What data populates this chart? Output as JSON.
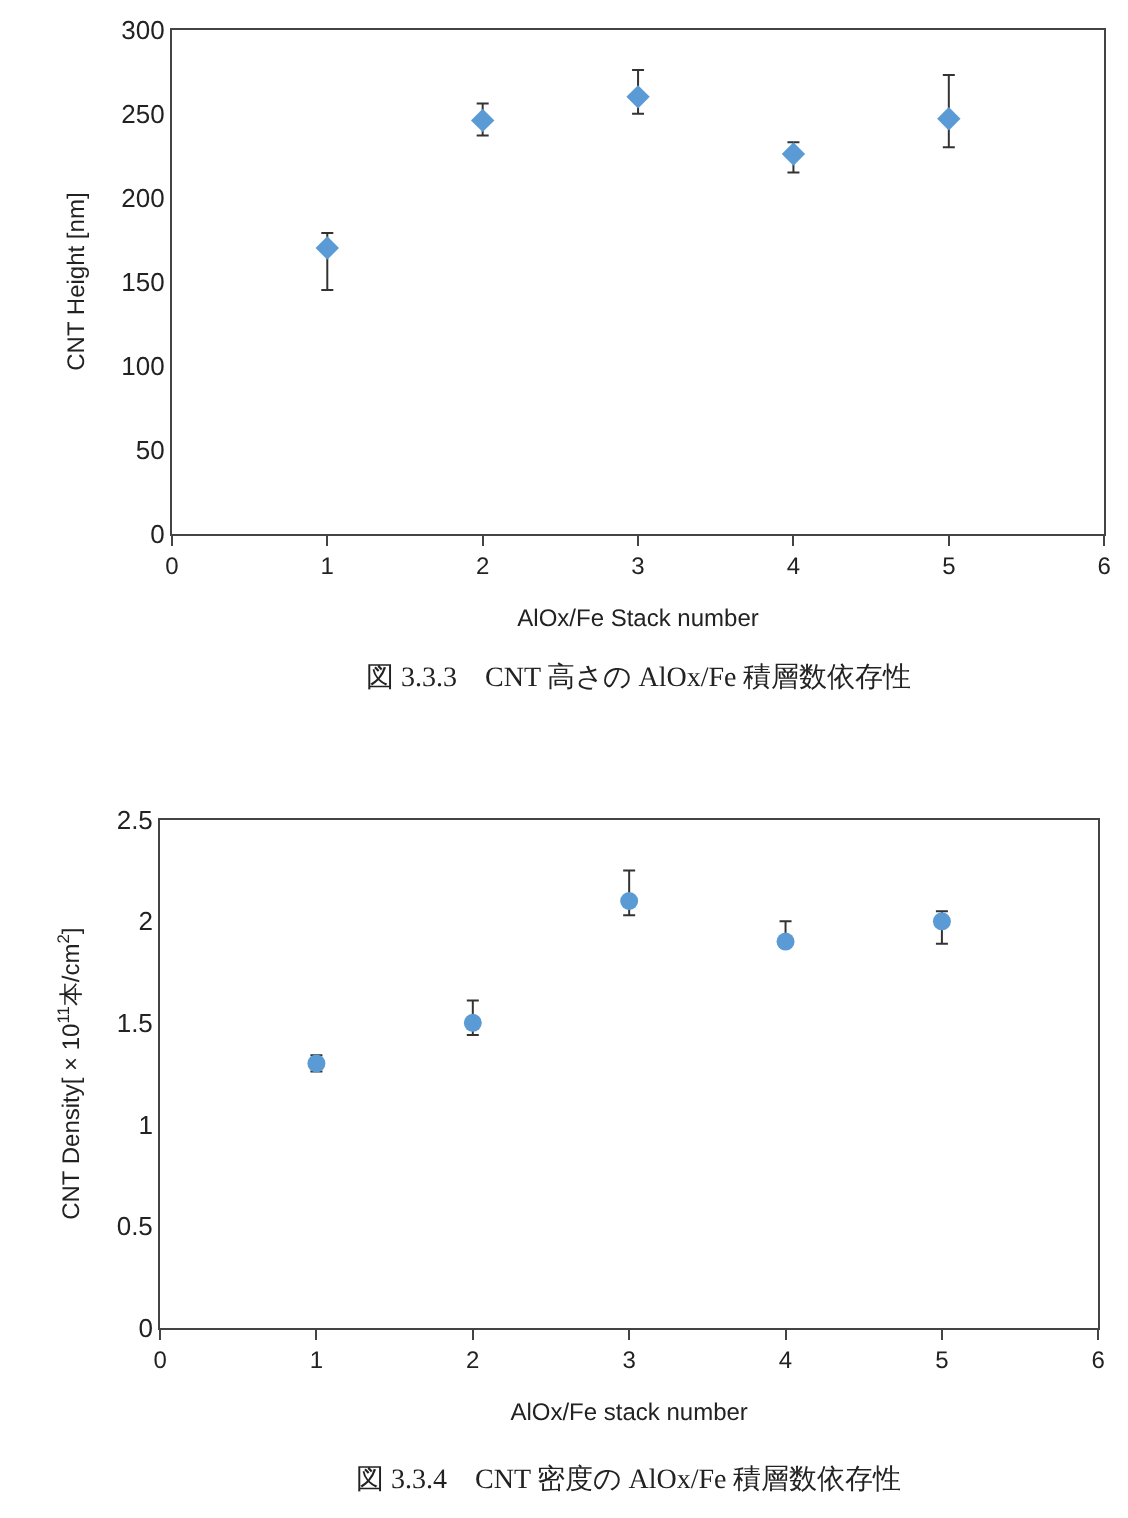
{
  "chart_data": [
    {
      "type": "scatter",
      "xlabel": "AlOx/Fe Stack number",
      "ylabel": "CNT Height [nm]",
      "x": [
        1,
        2,
        3,
        4,
        5
      ],
      "marker": "diamond",
      "grid": false,
      "series": [
        {
          "color": "#5b9bd5",
          "values": [
            170,
            246,
            260,
            226,
            247
          ],
          "errors": [
            [
              145,
              179
            ],
            [
              237,
              256
            ],
            [
              250,
              276
            ],
            [
              215,
              233
            ],
            [
              230,
              273
            ]
          ]
        }
      ],
      "xlim": [
        0,
        6
      ],
      "xticks": [
        0,
        1,
        2,
        3,
        4,
        5,
        6
      ],
      "ylim": [
        0,
        300
      ],
      "yticks": [
        0,
        50,
        100,
        150,
        200,
        250,
        300
      ],
      "annotations": [
        "図 3.3.3　CNT 高さの AlOx/Fe 積層数依存性"
      ]
    },
    {
      "type": "scatter",
      "xlabel": "AlOx/Fe stack number",
      "ylabel": "CNT Density[ × 10$^{11}$本/cm$^{2}$]",
      "x": [
        1,
        2,
        3,
        4,
        5
      ],
      "marker": "circle",
      "grid": false,
      "series": [
        {
          "color": "#5b9bd5",
          "values": [
            1.3,
            1.5,
            2.1,
            1.9,
            2.0
          ],
          "errors": [
            [
              1.26,
              1.34
            ],
            [
              1.44,
              1.61
            ],
            [
              2.03,
              2.25
            ],
            [
              1.88,
              2.0
            ],
            [
              1.89,
              2.05
            ]
          ]
        }
      ],
      "xlim": [
        0,
        6
      ],
      "xticks": [
        0,
        1,
        2,
        3,
        4,
        5,
        6
      ],
      "ylim": [
        0,
        2.5
      ],
      "yticks": [
        0,
        0.5,
        1,
        1.5,
        2,
        2.5
      ],
      "annotations": [
        "図 3.3.4　CNT 密度の AlOx/Fe 積層数依存性"
      ]
    }
  ]
}
